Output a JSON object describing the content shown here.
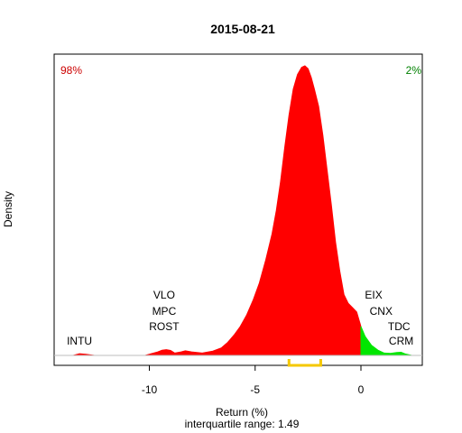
{
  "chart_data": {
    "type": "area",
    "title": "2015-08-21",
    "xlabel": "Return (%)",
    "ylabel": "Density",
    "subtitle": "interquartile range: 1.49",
    "xlim": [
      -14.5,
      2.9
    ],
    "ylim": [
      0,
      1
    ],
    "x_ticks": [
      -10,
      -5,
      0
    ],
    "x_tick_labels": [
      "-10",
      "-5",
      "0"
    ],
    "left_percent_label": "98%",
    "right_percent_label": "2%",
    "split_at": 0,
    "colors": {
      "negative": "#ff0000",
      "positive": "#00e600",
      "left_percent": "#cc0000",
      "right_percent": "#008000",
      "iqr": "#f5c800",
      "baseline": "#bebebe"
    },
    "iqr_range": [
      -3.4,
      -1.9
    ],
    "density": {
      "x": [
        -13.6,
        -13.3,
        -13.0,
        -12.6,
        -10.2,
        -9.6,
        -9.4,
        -9.2,
        -9.0,
        -8.8,
        -8.5,
        -8.3,
        -8.0,
        -7.5,
        -7.0,
        -6.6,
        -6.3,
        -6.0,
        -5.7,
        -5.4,
        -5.1,
        -4.8,
        -4.5,
        -4.2,
        -4.0,
        -3.8,
        -3.6,
        -3.4,
        -3.2,
        -3.0,
        -2.8,
        -2.65,
        -2.5,
        -2.35,
        -2.2,
        -2.0,
        -1.8,
        -1.6,
        -1.4,
        -1.2,
        -1.0,
        -0.8,
        -0.6,
        -0.4,
        -0.2,
        0.0,
        0.2,
        0.5,
        0.8,
        1.1,
        1.4,
        1.7,
        1.9,
        2.1,
        2.4
      ],
      "y": [
        0.0,
        0.006,
        0.004,
        0.0,
        0.0,
        0.012,
        0.018,
        0.02,
        0.017,
        0.008,
        0.012,
        0.016,
        0.012,
        0.008,
        0.015,
        0.026,
        0.045,
        0.07,
        0.1,
        0.14,
        0.19,
        0.25,
        0.33,
        0.42,
        0.5,
        0.6,
        0.72,
        0.83,
        0.92,
        0.97,
        0.995,
        1.0,
        0.99,
        0.96,
        0.92,
        0.86,
        0.76,
        0.64,
        0.52,
        0.39,
        0.29,
        0.21,
        0.18,
        0.165,
        0.15,
        0.1,
        0.065,
        0.035,
        0.018,
        0.008,
        0.007,
        0.01,
        0.011,
        0.005,
        0.0
      ]
    },
    "annotations": [
      {
        "text": "VLO",
        "x": -9.3,
        "row": 3
      },
      {
        "text": "MPC",
        "x": -9.3,
        "row": 2
      },
      {
        "text": "ROST",
        "x": -9.3,
        "row": 1
      },
      {
        "text": "INTU",
        "x": -13.3,
        "row": 0
      },
      {
        "text": "EIX",
        "x": 0.6,
        "row": 3
      },
      {
        "text": "CNX",
        "x": 0.95,
        "row": 2
      },
      {
        "text": "TDC",
        "x": 1.8,
        "row": 1
      },
      {
        "text": "CRM",
        "x": 1.9,
        "row": 0
      }
    ]
  }
}
